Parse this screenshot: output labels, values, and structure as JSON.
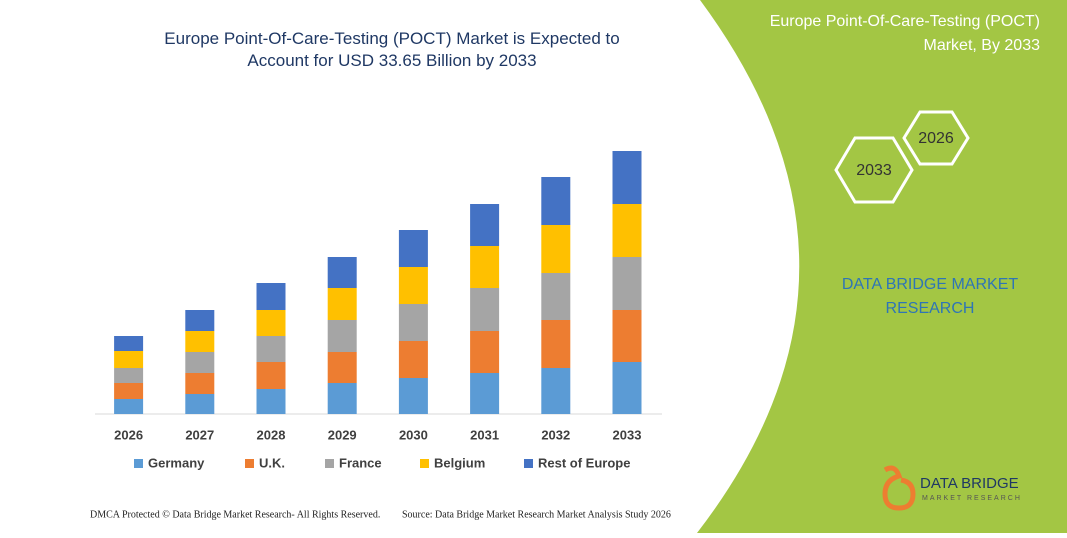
{
  "chart_data": {
    "type": "stacked_bar",
    "title": "Europe Point-Of-Care-Testing (POCT) Market is Expected to Account for USD 33.65 Billion by 2033",
    "categories": [
      "2026",
      "2027",
      "2028",
      "2029",
      "2030",
      "2031",
      "2032",
      "2033"
    ],
    "series": [
      {
        "name": "Germany",
        "color": "#5b9bd5",
        "values": [
          15,
          20,
          25,
          31,
          36,
          41,
          46,
          52
        ]
      },
      {
        "name": "U.K.",
        "color": "#ed7d31",
        "values": [
          16,
          21,
          27,
          31,
          37,
          42,
          48,
          52
        ]
      },
      {
        "name": "France",
        "color": "#a5a5a5",
        "values": [
          15,
          21,
          26,
          32,
          37,
          43,
          47,
          53
        ]
      },
      {
        "name": "Belgium",
        "color": "#ffc000",
        "values": [
          17,
          21,
          26,
          32,
          37,
          42,
          48,
          53
        ]
      },
      {
        "name": "Rest of Europe",
        "color": "#4472c4",
        "values": [
          15,
          21,
          27,
          31,
          37,
          42,
          48,
          53
        ]
      }
    ],
    "legend": "bottom"
  },
  "panel": {
    "title": "Europe Point-Of-Care-Testing (POCT) Market, By 2033",
    "hex_a": "2026",
    "hex_b": "2033",
    "brand": "DATA BRIDGE MARKET RESEARCH"
  },
  "logo": {
    "name": "DATA BRIDGE",
    "sub": "MARKET RESEARCH"
  },
  "footer": {
    "left": "DMCA Protected © Data Bridge Market Research- All Rights Reserved.",
    "right": "Source: Data Bridge Market Research Market Analysis Study 2026"
  }
}
